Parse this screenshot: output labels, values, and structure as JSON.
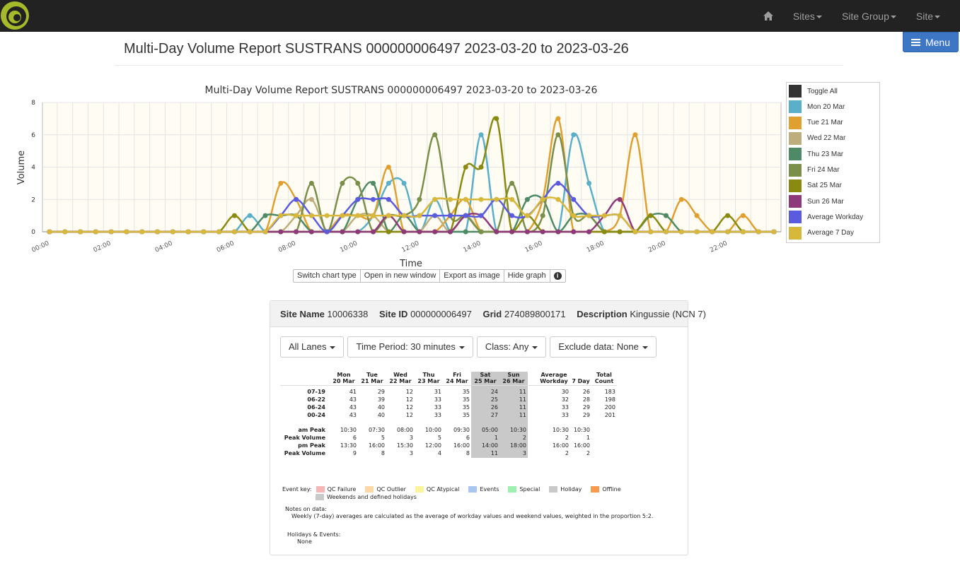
{
  "nav": {
    "items": [
      {
        "label": "Sites"
      },
      {
        "label": "Site Group"
      },
      {
        "label": "Site"
      }
    ],
    "menu_label": "Menu"
  },
  "page": {
    "title": "Multi-Day Volume Report SUSTRANS 000000006497 2023-03-20 to 2023-03-26"
  },
  "chart_data": {
    "type": "line",
    "title": "Multi-Day Volume Report SUSTRANS 000000006497 2023-03-20 to 2023-03-26",
    "xlabel": "Time",
    "ylabel": "Volume",
    "ylim": [
      0,
      8
    ],
    "yticks": [
      0,
      2,
      4,
      6,
      8
    ],
    "xticks": [
      "00:00",
      "02:00",
      "04:00",
      "06:00",
      "08:00",
      "10:00",
      "12:00",
      "14:00",
      "16:00",
      "18:00",
      "20:00",
      "22:00"
    ],
    "x": [
      "00:00",
      "00:30",
      "01:00",
      "01:30",
      "02:00",
      "02:30",
      "03:00",
      "03:30",
      "04:00",
      "04:30",
      "05:00",
      "05:30",
      "06:00",
      "06:30",
      "07:00",
      "07:30",
      "08:00",
      "08:30",
      "09:00",
      "09:30",
      "10:00",
      "10:30",
      "11:00",
      "11:30",
      "12:00",
      "12:30",
      "13:00",
      "13:30",
      "14:00",
      "14:30",
      "15:00",
      "15:30",
      "16:00",
      "16:30",
      "17:00",
      "17:30",
      "18:00",
      "18:30",
      "19:00",
      "19:30",
      "20:00",
      "20:30",
      "21:00",
      "21:30",
      "22:00",
      "22:30",
      "23:00",
      "23:30"
    ],
    "grid": true,
    "legend": "right",
    "legend_toggle_all": "Toggle All",
    "series": [
      {
        "name": "Mon 20 Mar",
        "color": "#5aafc9",
        "values": [
          0,
          0,
          0,
          0,
          0,
          0,
          0,
          0,
          0,
          0,
          0,
          0,
          0,
          1,
          0,
          0,
          0,
          0,
          0,
          0,
          0,
          1,
          3,
          3,
          0,
          2,
          0,
          0,
          6,
          0,
          0,
          0,
          0,
          0,
          6,
          3,
          0,
          0,
          0,
          0,
          0,
          0,
          0,
          0,
          0,
          0,
          0,
          0
        ]
      },
      {
        "name": "Tue 21 Mar",
        "color": "#e0a030",
        "values": [
          0,
          0,
          0,
          0,
          0,
          0,
          0,
          0,
          0,
          0,
          0,
          0,
          0,
          0,
          0,
          3,
          2,
          0,
          0,
          1,
          1,
          1,
          4,
          0,
          0,
          0,
          1,
          2,
          0,
          0,
          0,
          0,
          2,
          7,
          0,
          0,
          0,
          1,
          6,
          0,
          0,
          2,
          1,
          0,
          0,
          1,
          0,
          0
        ]
      },
      {
        "name": "Wed 22 Mar",
        "color": "#bfae7d",
        "values": [
          0,
          0,
          0,
          0,
          0,
          0,
          0,
          0,
          0,
          0,
          0,
          0,
          0,
          0,
          0,
          0,
          1,
          2,
          0,
          0,
          1,
          1,
          0,
          0,
          0,
          1,
          0,
          1,
          0,
          0,
          0,
          0,
          0,
          0,
          0,
          0,
          0,
          0,
          0,
          0,
          0,
          0,
          0,
          0,
          0,
          0,
          0,
          0
        ]
      },
      {
        "name": "Thu 23 Mar",
        "color": "#4e8a66",
        "values": [
          0,
          0,
          0,
          0,
          0,
          0,
          0,
          0,
          0,
          0,
          0,
          0,
          0,
          0,
          1,
          1,
          1,
          0,
          0,
          0,
          2,
          3,
          0,
          1,
          0,
          0,
          0,
          0,
          0,
          0,
          0,
          2,
          2,
          0,
          1,
          1,
          0,
          0,
          0,
          1,
          1,
          0,
          0,
          0,
          0,
          0,
          0,
          0
        ]
      },
      {
        "name": "Fri 24 Mar",
        "color": "#7a8f4a",
        "values": [
          0,
          0,
          0,
          0,
          0,
          0,
          0,
          0,
          0,
          0,
          0,
          0,
          0,
          0,
          0,
          0,
          0,
          3,
          0,
          3,
          3,
          0,
          1,
          1,
          2,
          6,
          1,
          1,
          0,
          0,
          3,
          0,
          1,
          6,
          1,
          1,
          0,
          0,
          0,
          0,
          0,
          0,
          0,
          0,
          0,
          0,
          0,
          0
        ]
      },
      {
        "name": "Sat 25 Mar",
        "color": "#8a8a10",
        "values": [
          0,
          0,
          0,
          0,
          0,
          0,
          0,
          0,
          0,
          0,
          0,
          0,
          1,
          0,
          0,
          0,
          0,
          0,
          0,
          0,
          0,
          0,
          0,
          0,
          0,
          0,
          0,
          4,
          4,
          7,
          0,
          1,
          0,
          0,
          0,
          0,
          0,
          0,
          0,
          1,
          0,
          0,
          0,
          0,
          1,
          0,
          0,
          0
        ]
      },
      {
        "name": "Sun 26 Mar",
        "color": "#8e3a7a",
        "values": [
          0,
          0,
          0,
          0,
          0,
          0,
          0,
          0,
          0,
          0,
          0,
          0,
          0,
          0,
          0,
          0,
          0,
          0,
          0,
          0,
          0,
          0,
          1,
          0,
          0,
          0,
          0,
          1,
          1,
          0,
          0,
          0,
          0,
          0,
          0,
          0,
          1,
          2,
          0,
          0,
          0,
          0,
          0,
          0,
          0,
          0,
          0,
          0
        ]
      },
      {
        "name": "Average Workday",
        "color": "#5b5be0",
        "values": [
          0,
          0,
          0,
          0,
          0,
          0,
          0,
          0,
          0,
          0,
          0,
          0,
          0,
          0,
          0,
          1,
          2,
          1,
          0,
          1,
          2,
          2,
          2,
          1,
          1,
          1,
          1,
          1,
          1,
          2,
          1,
          1,
          2,
          3,
          2,
          1,
          1,
          1,
          0,
          0,
          0,
          0,
          0,
          0,
          0,
          0,
          0,
          0
        ]
      },
      {
        "name": "Average 7 Day",
        "color": "#d8b83a",
        "values": [
          0,
          0,
          0,
          0,
          0,
          0,
          0,
          0,
          0,
          0,
          0,
          0,
          0,
          0,
          0,
          1,
          1,
          1,
          1,
          1,
          1,
          1,
          1,
          1,
          1,
          2,
          2,
          2,
          2,
          2,
          2,
          1,
          2,
          2,
          1,
          1,
          1,
          1,
          0,
          0,
          0,
          0,
          0,
          0,
          0,
          0,
          0,
          0
        ]
      }
    ]
  },
  "chart_toolbar": {
    "switch": "Switch chart type",
    "open": "Open in new window",
    "export": "Export as image",
    "hide": "Hide graph",
    "info": "i"
  },
  "site": {
    "name_label": "Site Name",
    "name": "10006338",
    "id_label": "Site ID",
    "id": "000000006497",
    "grid_label": "Grid",
    "grid": "274089800171",
    "desc_label": "Description",
    "desc": "Kingussie (NCN 7)"
  },
  "filters": {
    "lanes": "All Lanes",
    "period": "Time Period: 30 minutes",
    "class": "Class: Any",
    "exclude": "Exclude data: None"
  },
  "table": {
    "headers": [
      [
        "Mon",
        "20 Mar"
      ],
      [
        "Tue",
        "21 Mar"
      ],
      [
        "Wed",
        "22 Mar"
      ],
      [
        "Thu",
        "23 Mar"
      ],
      [
        "Fri",
        "24 Mar"
      ],
      [
        "Sat",
        "25 Mar"
      ],
      [
        "Sun",
        "26 Mar"
      ]
    ],
    "avg_header": "Average",
    "avg_sub": [
      "Workday",
      "7 Day"
    ],
    "total_header": [
      "Total",
      "Count"
    ],
    "volume_rows": [
      {
        "label": "07-19",
        "days": [
          "41",
          "29",
          "12",
          "31",
          "35",
          "24",
          "11"
        ],
        "avg": [
          "30",
          "26"
        ],
        "total": "183"
      },
      {
        "label": "06-22",
        "days": [
          "43",
          "39",
          "12",
          "33",
          "35",
          "25",
          "11"
        ],
        "avg": [
          "32",
          "28"
        ],
        "total": "198"
      },
      {
        "label": "06-24",
        "days": [
          "43",
          "40",
          "12",
          "33",
          "35",
          "26",
          "11"
        ],
        "avg": [
          "33",
          "29"
        ],
        "total": "200"
      },
      {
        "label": "00-24",
        "days": [
          "43",
          "40",
          "12",
          "33",
          "35",
          "27",
          "11"
        ],
        "avg": [
          "33",
          "29"
        ],
        "total": "201"
      }
    ],
    "peak_rows": [
      {
        "label": "am Peak",
        "days": [
          "10:30",
          "07:30",
          "08:00",
          "10:00",
          "09:30",
          "05:00",
          "10:30"
        ],
        "avg": [
          "10:30",
          "10:30"
        ]
      },
      {
        "label": "Peak Volume",
        "days": [
          "6",
          "5",
          "3",
          "5",
          "6",
          "1",
          "2"
        ],
        "avg": [
          "2",
          "1"
        ]
      },
      {
        "label": "pm Peak",
        "days": [
          "13:30",
          "16:00",
          "15:30",
          "12:00",
          "16:00",
          "14:00",
          "18:00"
        ],
        "avg": [
          "16:00",
          "16:00"
        ]
      },
      {
        "label": "Peak Volume",
        "days": [
          "9",
          "8",
          "3",
          "4",
          "8",
          "11",
          "3"
        ],
        "avg": [
          "2",
          "2"
        ]
      }
    ]
  },
  "event_key": {
    "label": "Event key:",
    "items": [
      {
        "label": "QC Failure",
        "color": "#f6b6b6"
      },
      {
        "label": "QC Outlier",
        "color": "#fbd9a6"
      },
      {
        "label": "QC Atypical",
        "color": "#fbf59a"
      },
      {
        "label": "Events",
        "color": "#a9c7ee"
      },
      {
        "label": "Special",
        "color": "#9ef0b0"
      },
      {
        "label": "Holiday",
        "color": "#c9c9c9"
      },
      {
        "label": "Offline",
        "color": "#f79a4e"
      }
    ],
    "weekend_label": "Weekends and defined holidays",
    "weekend_color": "#c9c9c9"
  },
  "notes": {
    "title": "Notes on data:",
    "text": "Weekly (7-day) averages are calculated as the average of workday values and weekend values, weighted in the proportion 5:2."
  },
  "holidays": {
    "title": "Holidays & Events:",
    "value": "None"
  }
}
